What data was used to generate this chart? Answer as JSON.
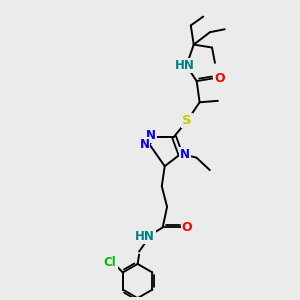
{
  "background_color": "#ebebeb",
  "atom_colors": {
    "N": "#0000ff",
    "O": "#ff0000",
    "S": "#cccc00",
    "Cl": "#00bb00",
    "H_label": "#008080",
    "C": "#000000"
  },
  "bond_color": "#000000",
  "figsize": [
    3.0,
    3.0
  ],
  "dpi": 100
}
